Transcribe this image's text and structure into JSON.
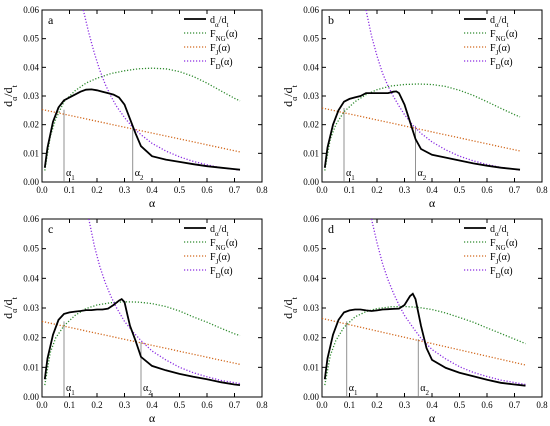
{
  "figure": {
    "panel_count": 4
  },
  "chart_data": [
    {
      "panel": "a",
      "type": "line",
      "xlabel": "α",
      "ylabel": "dα/dt",
      "xlim": [
        0,
        0.8
      ],
      "ylim": [
        0,
        0.06
      ],
      "xticks": [
        "0.0",
        "0.1",
        "0.2",
        "0.3",
        "0.4",
        "0.5",
        "0.6",
        "0.7",
        "0.8"
      ],
      "yticks": [
        "0.00",
        "0.01",
        "0.02",
        "0.03",
        "0.04",
        "0.05",
        "0.06"
      ],
      "legend_position": "top-right",
      "grid": false,
      "series": [
        {
          "name": "dα/dt",
          "style": "solid",
          "color": "#000000",
          "x": [
            0.01,
            0.02,
            0.04,
            0.06,
            0.08,
            0.1,
            0.12,
            0.14,
            0.16,
            0.18,
            0.2,
            0.22,
            0.24,
            0.26,
            0.28,
            0.3,
            0.32,
            0.34,
            0.36,
            0.4,
            0.45,
            0.5,
            0.55,
            0.6,
            0.65,
            0.7,
            0.72
          ],
          "y": [
            0.005,
            0.012,
            0.021,
            0.026,
            0.0285,
            0.0295,
            0.0305,
            0.0315,
            0.0322,
            0.0323,
            0.032,
            0.0315,
            0.031,
            0.0305,
            0.0295,
            0.027,
            0.022,
            0.017,
            0.0125,
            0.009,
            0.0078,
            0.007,
            0.0062,
            0.0055,
            0.005,
            0.0045,
            0.0043
          ]
        },
        {
          "name": "F_NG(α)",
          "style": "dotted",
          "color": "#2e8b2e",
          "x": [
            0.01,
            0.03,
            0.05,
            0.08,
            0.12,
            0.16,
            0.2,
            0.25,
            0.3,
            0.35,
            0.4,
            0.45,
            0.5,
            0.55,
            0.6,
            0.65,
            0.7,
            0.72
          ],
          "y": [
            0.004,
            0.016,
            0.022,
            0.028,
            0.0318,
            0.0345,
            0.0362,
            0.0378,
            0.0388,
            0.0395,
            0.0397,
            0.0395,
            0.0385,
            0.0368,
            0.0345,
            0.0318,
            0.0292,
            0.0283
          ]
        },
        {
          "name": "F_J(α)",
          "style": "dotted",
          "color": "#d2691e",
          "x": [
            0.0,
            0.72
          ],
          "y": [
            0.0253,
            0.0105
          ]
        },
        {
          "name": "F_D(α)",
          "style": "dotted",
          "color": "#8a2be2",
          "x": [
            0.15,
            0.17,
            0.19,
            0.21,
            0.23,
            0.25,
            0.27,
            0.3,
            0.33,
            0.36,
            0.4,
            0.45,
            0.5,
            0.55,
            0.6,
            0.65,
            0.72
          ],
          "y": [
            0.06,
            0.052,
            0.045,
            0.039,
            0.034,
            0.03,
            0.0265,
            0.0225,
            0.019,
            0.0165,
            0.0135,
            0.0108,
            0.0088,
            0.0072,
            0.006,
            0.005,
            0.0042
          ]
        }
      ],
      "annotations": [
        {
          "text": "α1",
          "x": 0.08,
          "y": 0.0252
        },
        {
          "text": "α2",
          "x": 0.33,
          "y": 0.0192
        }
      ]
    },
    {
      "panel": "b",
      "type": "line",
      "xlabel": "α",
      "ylabel": "dα/dt",
      "xlim": [
        0,
        0.8
      ],
      "ylim": [
        0,
        0.06
      ],
      "xticks": [
        "0.0",
        "0.1",
        "0.2",
        "0.3",
        "0.4",
        "0.5",
        "0.6",
        "0.7",
        "0.8"
      ],
      "yticks": [
        "0.00",
        "0.01",
        "0.02",
        "0.03",
        "0.04",
        "0.05",
        "0.06"
      ],
      "legend_position": "top-right",
      "grid": false,
      "series": [
        {
          "name": "dα/dt",
          "style": "solid",
          "color": "#000000",
          "x": [
            0.01,
            0.02,
            0.04,
            0.06,
            0.08,
            0.1,
            0.12,
            0.14,
            0.16,
            0.18,
            0.2,
            0.22,
            0.24,
            0.26,
            0.27,
            0.28,
            0.3,
            0.32,
            0.34,
            0.36,
            0.4,
            0.45,
            0.5,
            0.55,
            0.6,
            0.65,
            0.7,
            0.72
          ],
          "y": [
            0.005,
            0.012,
            0.02,
            0.025,
            0.028,
            0.029,
            0.0295,
            0.03,
            0.031,
            0.031,
            0.031,
            0.031,
            0.031,
            0.0315,
            0.0316,
            0.031,
            0.027,
            0.021,
            0.015,
            0.0115,
            0.0095,
            0.0085,
            0.0075,
            0.0065,
            0.0057,
            0.005,
            0.0045,
            0.0043
          ]
        },
        {
          "name": "F_NG(α)",
          "style": "dotted",
          "color": "#2e8b2e",
          "x": [
            0.01,
            0.03,
            0.05,
            0.08,
            0.12,
            0.16,
            0.2,
            0.25,
            0.3,
            0.35,
            0.4,
            0.45,
            0.5,
            0.55,
            0.6,
            0.65,
            0.7,
            0.72
          ],
          "y": [
            0.004,
            0.015,
            0.02,
            0.0245,
            0.028,
            0.0305,
            0.0322,
            0.0335,
            0.034,
            0.0342,
            0.034,
            0.0333,
            0.032,
            0.0302,
            0.028,
            0.0257,
            0.0235,
            0.0227
          ]
        },
        {
          "name": "F_J(α)",
          "style": "dotted",
          "color": "#d2691e",
          "x": [
            0.0,
            0.72
          ],
          "y": [
            0.0258,
            0.0108
          ]
        },
        {
          "name": "F_D(α)",
          "style": "dotted",
          "color": "#8a2be2",
          "x": [
            0.16,
            0.18,
            0.2,
            0.22,
            0.24,
            0.26,
            0.28,
            0.3,
            0.33,
            0.36,
            0.4,
            0.45,
            0.5,
            0.55,
            0.6,
            0.65,
            0.72
          ],
          "y": [
            0.06,
            0.051,
            0.044,
            0.038,
            0.0335,
            0.0298,
            0.0265,
            0.0235,
            0.0198,
            0.017,
            0.014,
            0.0112,
            0.009,
            0.0074,
            0.0061,
            0.0051,
            0.0042
          ]
        }
      ],
      "annotations": [
        {
          "text": "α1",
          "x": 0.08,
          "y": 0.0258
        },
        {
          "text": "α2",
          "x": 0.34,
          "y": 0.0196
        }
      ]
    },
    {
      "panel": "c",
      "type": "line",
      "xlabel": "α",
      "ylabel": "dα/dt",
      "xlim": [
        0,
        0.8
      ],
      "ylim": [
        0,
        0.06
      ],
      "xticks": [
        "0.0",
        "0.1",
        "0.2",
        "0.3",
        "0.4",
        "0.5",
        "0.6",
        "0.7",
        "0.8"
      ],
      "yticks": [
        "0.00",
        "0.01",
        "0.02",
        "0.03",
        "0.04",
        "0.05",
        "0.06"
      ],
      "legend_position": "top-right",
      "grid": false,
      "series": [
        {
          "name": "dα/dt",
          "style": "solid",
          "color": "#000000",
          "x": [
            0.01,
            0.02,
            0.04,
            0.06,
            0.08,
            0.1,
            0.12,
            0.14,
            0.16,
            0.18,
            0.2,
            0.22,
            0.24,
            0.26,
            0.28,
            0.29,
            0.3,
            0.31,
            0.32,
            0.34,
            0.36,
            0.4,
            0.45,
            0.5,
            0.55,
            0.6,
            0.65,
            0.7,
            0.72
          ],
          "y": [
            0.006,
            0.013,
            0.021,
            0.026,
            0.028,
            0.0285,
            0.0288,
            0.029,
            0.0293,
            0.0293,
            0.0295,
            0.0295,
            0.0298,
            0.031,
            0.0325,
            0.033,
            0.032,
            0.028,
            0.024,
            0.019,
            0.0135,
            0.0105,
            0.009,
            0.0078,
            0.0068,
            0.006,
            0.005,
            0.0042,
            0.004
          ]
        },
        {
          "name": "F_NG(α)",
          "style": "dotted",
          "color": "#2e8b2e",
          "x": [
            0.01,
            0.03,
            0.05,
            0.08,
            0.12,
            0.16,
            0.2,
            0.25,
            0.3,
            0.35,
            0.4,
            0.45,
            0.5,
            0.55,
            0.6,
            0.65,
            0.7,
            0.72
          ],
          "y": [
            0.004,
            0.015,
            0.02,
            0.024,
            0.0275,
            0.0298,
            0.031,
            0.0318,
            0.0321,
            0.032,
            0.0315,
            0.0305,
            0.029,
            0.027,
            0.0252,
            0.0232,
            0.0213,
            0.0207
          ]
        },
        {
          "name": "F_J(α)",
          "style": "dotted",
          "color": "#d2691e",
          "x": [
            0.0,
            0.72
          ],
          "y": [
            0.0255,
            0.011
          ]
        },
        {
          "name": "F_D(α)",
          "style": "dotted",
          "color": "#8a2be2",
          "x": [
            0.17,
            0.19,
            0.21,
            0.23,
            0.25,
            0.27,
            0.3,
            0.33,
            0.36,
            0.4,
            0.45,
            0.5,
            0.55,
            0.6,
            0.65,
            0.72
          ],
          "y": [
            0.06,
            0.051,
            0.044,
            0.0385,
            0.034,
            0.0302,
            0.0255,
            0.022,
            0.019,
            0.0155,
            0.0125,
            0.01,
            0.0082,
            0.0068,
            0.0056,
            0.0045
          ]
        }
      ],
      "annotations": [
        {
          "text": "α1",
          "x": 0.08,
          "y": 0.0255
        },
        {
          "text": "α2",
          "x": 0.36,
          "y": 0.0185
        }
      ]
    },
    {
      "panel": "d",
      "type": "line",
      "xlabel": "α",
      "ylabel": "dα/dt",
      "xlim": [
        0,
        0.8
      ],
      "ylim": [
        0,
        0.06
      ],
      "xticks": [
        "0.0",
        "0.1",
        "0.2",
        "0.3",
        "0.4",
        "0.5",
        "0.6",
        "0.7",
        "0.8"
      ],
      "yticks": [
        "0.00",
        "0.01",
        "0.02",
        "0.03",
        "0.04",
        "0.05",
        "0.06"
      ],
      "legend_position": "top-right",
      "grid": false,
      "series": [
        {
          "name": "dα/dt",
          "style": "solid",
          "color": "#000000",
          "x": [
            0.01,
            0.02,
            0.04,
            0.06,
            0.08,
            0.1,
            0.12,
            0.14,
            0.16,
            0.18,
            0.2,
            0.22,
            0.24,
            0.26,
            0.28,
            0.3,
            0.32,
            0.33,
            0.34,
            0.36,
            0.38,
            0.4,
            0.45,
            0.5,
            0.55,
            0.6,
            0.65,
            0.7,
            0.74
          ],
          "y": [
            0.006,
            0.013,
            0.021,
            0.026,
            0.0285,
            0.0292,
            0.0295,
            0.0295,
            0.0292,
            0.029,
            0.0292,
            0.0295,
            0.0296,
            0.0297,
            0.0298,
            0.031,
            0.034,
            0.0348,
            0.033,
            0.024,
            0.0165,
            0.0125,
            0.0098,
            0.0082,
            0.007,
            0.0058,
            0.0048,
            0.0042,
            0.0038
          ]
        },
        {
          "name": "F_NG(α)",
          "style": "dotted",
          "color": "#2e8b2e",
          "x": [
            0.01,
            0.03,
            0.05,
            0.08,
            0.12,
            0.16,
            0.2,
            0.25,
            0.3,
            0.35,
            0.4,
            0.45,
            0.5,
            0.55,
            0.6,
            0.65,
            0.7,
            0.74
          ],
          "y": [
            0.004,
            0.014,
            0.019,
            0.0235,
            0.027,
            0.0288,
            0.0298,
            0.0304,
            0.0305,
            0.0302,
            0.0295,
            0.0283,
            0.0268,
            0.0252,
            0.0233,
            0.0214,
            0.0195,
            0.018
          ]
        },
        {
          "name": "F_J(α)",
          "style": "dotted",
          "color": "#d2691e",
          "x": [
            0.0,
            0.74
          ],
          "y": [
            0.0265,
            0.0108
          ]
        },
        {
          "name": "F_D(α)",
          "style": "dotted",
          "color": "#8a2be2",
          "x": [
            0.18,
            0.2,
            0.22,
            0.24,
            0.26,
            0.28,
            0.3,
            0.33,
            0.36,
            0.4,
            0.45,
            0.5,
            0.55,
            0.6,
            0.65,
            0.74
          ],
          "y": [
            0.06,
            0.052,
            0.045,
            0.0395,
            0.035,
            0.031,
            0.0275,
            0.0235,
            0.0198,
            0.016,
            0.0128,
            0.0102,
            0.0083,
            0.0069,
            0.0057,
            0.0042
          ]
        }
      ],
      "annotations": [
        {
          "text": "α1",
          "x": 0.09,
          "y": 0.0255
        },
        {
          "text": "α2",
          "x": 0.35,
          "y": 0.0195
        }
      ]
    }
  ]
}
